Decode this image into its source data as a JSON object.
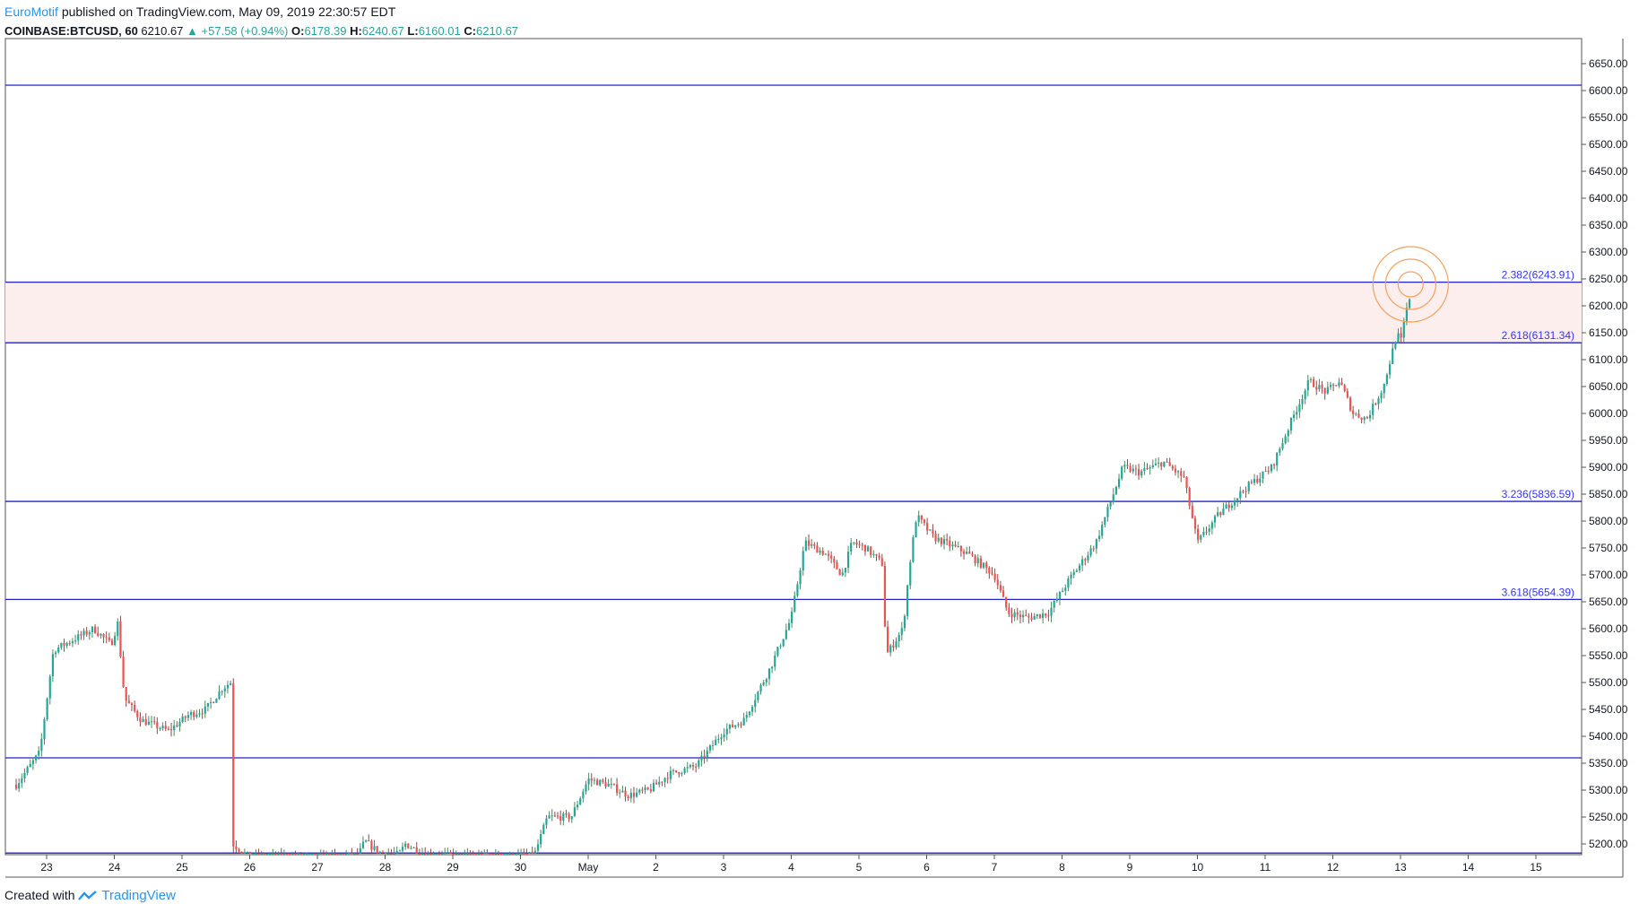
{
  "header": {
    "author": "EuroMotif",
    "published": "published on TradingView.com, May 09, 2019 22:30:57 EDT",
    "symbol": "COINBASE:BTCUSD, 60",
    "last": "6210.67",
    "change": "▲ +57.58 (+0.94%)",
    "o_label": "O:",
    "o_value": "6178.39",
    "h_label": "H:",
    "h_value": "6240.67",
    "l_label": "L:",
    "l_value": "6160.01",
    "c_label": "C:",
    "c_value": "6210.67"
  },
  "footer": {
    "created_with": "Created with",
    "brand": "TradingView"
  },
  "colors": {
    "up": "#26a69a",
    "down": "#ef5350",
    "hline": "#2222cc",
    "zone": "#fdeeee",
    "circle": "#f5a05a"
  },
  "chart_data": {
    "type": "candlestick",
    "title": "",
    "ylim": [
      5180,
      6700
    ],
    "y_ticks": [
      "5200.00",
      "5250.00",
      "5300.00",
      "5350.00",
      "5400.00",
      "5450.00",
      "5500.00",
      "5550.00",
      "5600.00",
      "5650.00",
      "5700.00",
      "5750.00",
      "5800.00",
      "5850.00",
      "5900.00",
      "5950.00",
      "6000.00",
      "6050.00",
      "6100.00",
      "6150.00",
      "6200.00",
      "6250.00",
      "6300.00",
      "6350.00",
      "6400.00",
      "6450.00",
      "6500.00",
      "6550.00",
      "6600.00",
      "6650.00"
    ],
    "x_ticks": [
      "23",
      "24",
      "25",
      "26",
      "27",
      "28",
      "29",
      "30",
      "May",
      "2",
      "3",
      "4",
      "5",
      "6",
      "7",
      "8",
      "9",
      "10",
      "11",
      "12",
      "13",
      "14",
      "15"
    ],
    "xlim": [
      22.4,
      45.8
    ],
    "horizontal_lines": [
      6610,
      5360,
      5183
    ],
    "fib_levels": [
      {
        "label": "2.382(6243.91)",
        "value": 6243.91
      },
      {
        "label": "2.618(6131.34)",
        "value": 6131.34
      },
      {
        "label": "3.236(5836.59)",
        "value": 5836.59
      },
      {
        "label": "3.618(5654.39)",
        "value": 5654.39
      }
    ],
    "highlight_zone": [
      6131.34,
      6243.91
    ],
    "anchors": [
      [
        22.55,
        5310
      ],
      [
        22.9,
        5370
      ],
      [
        23.1,
        5560
      ],
      [
        23.4,
        5580
      ],
      [
        23.7,
        5600
      ],
      [
        23.95,
        5570
      ],
      [
        24.05,
        5610
      ],
      [
        24.15,
        5470
      ],
      [
        24.4,
        5430
      ],
      [
        24.8,
        5410
      ],
      [
        25.1,
        5440
      ],
      [
        25.35,
        5450
      ],
      [
        25.6,
        5490
      ],
      [
        25.72,
        5500
      ],
      [
        25.75,
        5200
      ],
      [
        26.0,
        5175
      ],
      [
        26.5,
        5175
      ],
      [
        27.0,
        5175
      ],
      [
        27.6,
        5178
      ],
      [
        27.7,
        5205
      ],
      [
        27.9,
        5185
      ],
      [
        28.2,
        5180
      ],
      [
        28.3,
        5200
      ],
      [
        28.6,
        5180
      ],
      [
        29.0,
        5178
      ],
      [
        29.5,
        5177
      ],
      [
        30.2,
        5178
      ],
      [
        30.4,
        5250
      ],
      [
        30.75,
        5250
      ],
      [
        31.0,
        5320
      ],
      [
        31.3,
        5310
      ],
      [
        31.6,
        5290
      ],
      [
        31.9,
        5300
      ],
      [
        32.2,
        5330
      ],
      [
        32.6,
        5345
      ],
      [
        33.0,
        5410
      ],
      [
        33.3,
        5430
      ],
      [
        33.7,
        5530
      ],
      [
        34.0,
        5620
      ],
      [
        34.2,
        5760
      ],
      [
        34.5,
        5740
      ],
      [
        34.75,
        5700
      ],
      [
        34.9,
        5760
      ],
      [
        35.1,
        5750
      ],
      [
        35.35,
        5720
      ],
      [
        35.4,
        5550
      ],
      [
        35.65,
        5600
      ],
      [
        35.75,
        5720
      ],
      [
        35.85,
        5810
      ],
      [
        36.1,
        5770
      ],
      [
        36.6,
        5740
      ],
      [
        37.0,
        5700
      ],
      [
        37.2,
        5630
      ],
      [
        37.5,
        5620
      ],
      [
        37.8,
        5630
      ],
      [
        38.1,
        5690
      ],
      [
        38.5,
        5760
      ],
      [
        38.9,
        5900
      ],
      [
        39.15,
        5890
      ],
      [
        39.5,
        5910
      ],
      [
        39.8,
        5880
      ],
      [
        40.0,
        5760
      ],
      [
        40.3,
        5810
      ],
      [
        40.7,
        5860
      ],
      [
        41.1,
        5900
      ],
      [
        41.4,
        5990
      ],
      [
        41.65,
        6060
      ],
      [
        41.9,
        6040
      ],
      [
        42.1,
        6060
      ],
      [
        42.3,
        6000
      ],
      [
        42.5,
        5990
      ],
      [
        42.75,
        6050
      ],
      [
        42.95,
        6150
      ],
      [
        43.0,
        6130
      ],
      [
        43.1,
        6200
      ],
      [
        43.15,
        6211
      ]
    ]
  }
}
